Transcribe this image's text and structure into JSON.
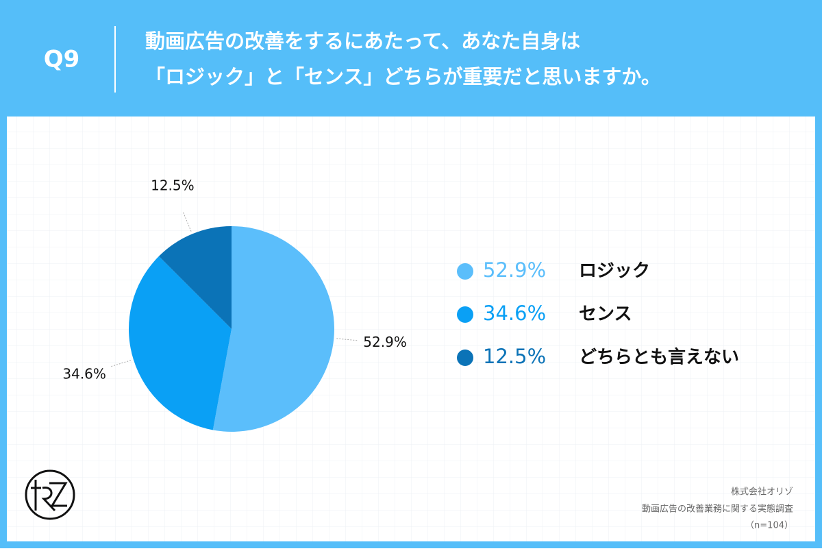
{
  "chart_data": {
    "type": "pie",
    "question_number": "Q9",
    "title_lines": [
      "動画広告の改善をするにあたって、あなた自身は",
      "「ロジック」と「センス」どちらが重要だと思いますか。"
    ],
    "categories": [
      "ロジック",
      "センス",
      "どちらとも言えない"
    ],
    "values": [
      52.9,
      34.6,
      12.5
    ],
    "value_labels": [
      "52.9%",
      "34.6%",
      "12.5%"
    ],
    "colors": [
      "#5bbefb",
      "#0aa0f5",
      "#0b73b7"
    ],
    "legend": "right",
    "source_lines": [
      "株式会社オリゾ",
      "動画広告の改善業務に関する実態調査",
      "（n=104）"
    ]
  }
}
